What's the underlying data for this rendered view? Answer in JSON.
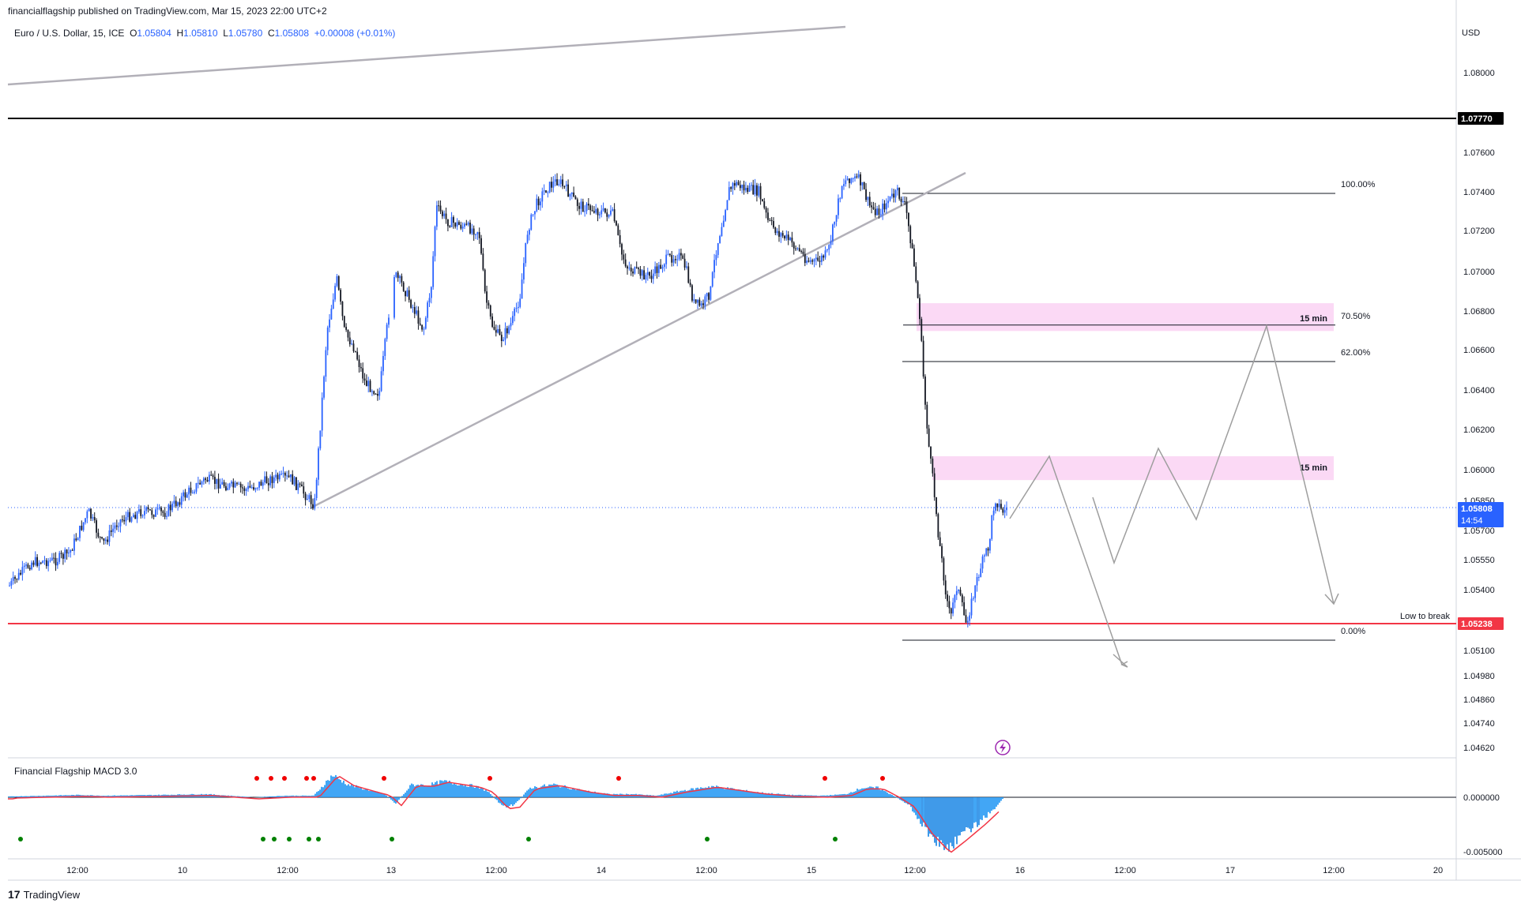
{
  "header": {
    "published_by": "financialflagship published on TradingView.com, Mar 15, 2023 22:00 UTC+2"
  },
  "symbol": {
    "name": "Euro / U.S. Dollar, 15, ICE",
    "o_label": "O",
    "o": "1.05804",
    "h_label": "H",
    "h": "1.05810",
    "l_label": "L",
    "l": "1.05780",
    "c_label": "C",
    "c": "1.05808",
    "change": "+0.00008 (+0.01%)"
  },
  "indicator": {
    "name": "Financial Flagship MACD 3.0"
  },
  "footer": {
    "brand": "TradingView"
  },
  "colors": {
    "up_candle": "#2962ff",
    "down_candle": "#131722",
    "zone": "#fbd9f5",
    "support_line": "#f23645",
    "resistance_line": "#000000",
    "trendline": "#b2b0b8",
    "path": "#9e9e9e",
    "macd_hist": "#2196f3",
    "macd_signal": "#f23645",
    "dot_red": "#f00000",
    "dot_green": "#008000"
  },
  "chart_data": {
    "type": "candlestick",
    "currency": "USD",
    "price_ticks": [
      "1.08000",
      "1.07600",
      "1.07400",
      "1.07200",
      "1.07000",
      "1.06800",
      "1.06600",
      "1.06400",
      "1.06200",
      "1.06000",
      "1.05850",
      "1.05700",
      "1.05550",
      "1.05400",
      "1.05100",
      "1.04980",
      "1.04860",
      "1.04740",
      "1.04620"
    ],
    "x_ticks": [
      "12:00",
      "10",
      "12:00",
      "13",
      "12:00",
      "14",
      "12:00",
      "15",
      "12:00",
      "16",
      "12:00",
      "17",
      "12:00",
      "20"
    ],
    "ylim": [
      1.0455,
      1.0818
    ],
    "resistance": {
      "value": 1.0777,
      "label": "1.07770"
    },
    "support": {
      "value": 1.05238,
      "label": "1.05238",
      "note": "Low to break"
    },
    "current_price": {
      "value": 1.05808,
      "label": "1.05808",
      "countdown": "14:54"
    },
    "fibonacci": [
      {
        "label": "100.00%",
        "value": 1.0739
      },
      {
        "label": "70.50%",
        "value": 1.0673
      },
      {
        "label": "62.00%",
        "value": 1.0654
      },
      {
        "label": "0.00%",
        "value": 1.0512
      }
    ],
    "zones": [
      {
        "label": "15 min",
        "top": 1.0684,
        "bottom": 1.067,
        "line": 1.0673
      },
      {
        "label": "15 min",
        "top": 1.0607,
        "bottom": 1.0595
      }
    ],
    "macd": {
      "ticks": [
        "0.000000",
        "-0.005000"
      ],
      "ylim": [
        -0.0058,
        0.0028
      ]
    }
  }
}
